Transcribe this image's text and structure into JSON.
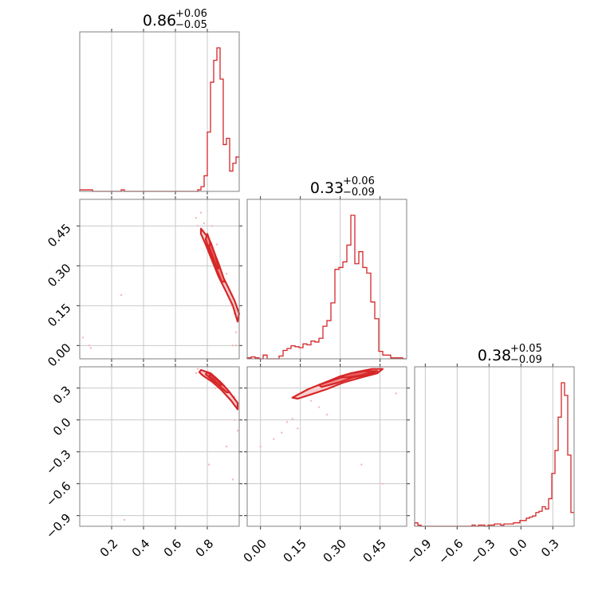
{
  "chart_data": {
    "type": "corner",
    "color": "#d62728",
    "grid": true,
    "params": [
      {
        "range": [
          0.0,
          1.0
        ],
        "ticks": [
          0.2,
          0.4,
          0.6,
          0.8
        ],
        "tick_labels": [
          "0.2",
          "0.4",
          "0.6",
          "0.8"
        ],
        "title": {
          "median": "0.86",
          "plus": "+0.06",
          "minus": "−0.05"
        },
        "hist_bins": [
          0.0,
          0.02,
          0.04,
          0.06,
          0.08,
          0.1,
          0.12,
          0.14,
          0.16,
          0.18,
          0.2,
          0.22,
          0.24,
          0.26,
          0.28,
          0.3,
          0.32,
          0.34,
          0.36,
          0.38,
          0.4,
          0.42,
          0.44,
          0.46,
          0.48,
          0.5,
          0.52,
          0.54,
          0.56,
          0.58,
          0.6,
          0.62,
          0.64,
          0.66,
          0.68,
          0.7,
          0.72,
          0.74,
          0.76,
          0.78,
          0.8,
          0.82,
          0.84,
          0.86,
          0.88,
          0.9,
          0.92,
          0.94,
          0.96,
          0.98,
          1.0
        ],
        "hist_values": [
          1,
          1,
          1,
          1,
          0,
          0,
          0,
          0,
          0,
          0,
          0,
          0,
          0,
          1,
          0,
          0,
          0,
          0,
          0,
          0,
          0,
          0,
          0,
          0,
          0,
          0,
          0,
          0,
          0,
          0,
          0,
          0,
          0,
          0,
          0,
          0,
          0,
          1,
          3,
          10,
          38,
          70,
          84,
          92,
          72,
          30,
          34,
          13,
          18,
          22
        ]
      },
      {
        "range": [
          -0.05,
          0.55
        ],
        "ticks": [
          0.0,
          0.15,
          0.3,
          0.45
        ],
        "tick_labels": [
          "0.00",
          "0.15",
          "0.30",
          "0.45"
        ],
        "title": {
          "median": "0.33",
          "plus": "+0.06",
          "minus": "−0.09"
        },
        "hist_bins": [
          -0.05,
          -0.035,
          -0.02,
          -0.005,
          0.01,
          0.025,
          0.04,
          0.055,
          0.07,
          0.085,
          0.1,
          0.115,
          0.13,
          0.145,
          0.16,
          0.175,
          0.19,
          0.205,
          0.22,
          0.235,
          0.25,
          0.265,
          0.28,
          0.295,
          0.31,
          0.325,
          0.34,
          0.355,
          0.37,
          0.385,
          0.4,
          0.415,
          0.43,
          0.445,
          0.46,
          0.475,
          0.49,
          0.505,
          0.52,
          0.535,
          0.55
        ],
        "hist_values": [
          1,
          2,
          1,
          0,
          4,
          0,
          0,
          0,
          3,
          9,
          11,
          14,
          13,
          12,
          16,
          15,
          19,
          18,
          22,
          35,
          41,
          60,
          96,
          98,
          104,
          122,
          154,
          102,
          115,
          98,
          92,
          61,
          43,
          8,
          4,
          4,
          1,
          1,
          1,
          0
        ]
      },
      {
        "range": [
          -1.0,
          0.5
        ],
        "ticks": [
          -0.9,
          -0.6,
          -0.3,
          0.0,
          0.3
        ],
        "tick_labels": [
          "−0.9",
          "−0.6",
          "−0.3",
          "0.0",
          "0.3"
        ],
        "title": {
          "median": "0.38",
          "plus": "+0.05",
          "minus": "−0.09"
        },
        "hist_bins": [
          -1.0,
          -0.97,
          -0.94,
          -0.91,
          -0.88,
          -0.85,
          -0.82,
          -0.79,
          -0.76,
          -0.73,
          -0.7,
          -0.67,
          -0.64,
          -0.61,
          -0.58,
          -0.55,
          -0.52,
          -0.49,
          -0.46,
          -0.43,
          -0.4,
          -0.37,
          -0.34,
          -0.31,
          -0.28,
          -0.25,
          -0.22,
          -0.19,
          -0.16,
          -0.13,
          -0.1,
          -0.07,
          -0.04,
          -0.01,
          0.02,
          0.05,
          0.08,
          0.11,
          0.14,
          0.17,
          0.2,
          0.23,
          0.26,
          0.29,
          0.32,
          0.35,
          0.38,
          0.41,
          0.44,
          0.47,
          0.5
        ],
        "hist_values": [
          3,
          1,
          0,
          0,
          0,
          0,
          0,
          0,
          0,
          0,
          0,
          0,
          0,
          0,
          0,
          0,
          0,
          0,
          1,
          0,
          1,
          1,
          0,
          1,
          1,
          2,
          2,
          1,
          2,
          2,
          2,
          3,
          3,
          5,
          5,
          7,
          8,
          9,
          12,
          13,
          17,
          15,
          24,
          46,
          66,
          95,
          125,
          114,
          62,
          12
        ]
      }
    ],
    "contours": [
      {
        "row": 1,
        "col": 0,
        "levels": [
          [
            [
              0.76,
              0.44
            ],
            [
              0.8,
              0.41
            ],
            [
              0.84,
              0.34
            ],
            [
              0.88,
              0.28
            ],
            [
              0.93,
              0.22
            ],
            [
              0.97,
              0.17
            ],
            [
              1.0,
              0.12
            ],
            [
              0.99,
              0.09
            ],
            [
              0.96,
              0.15
            ],
            [
              0.92,
              0.2
            ],
            [
              0.87,
              0.26
            ],
            [
              0.83,
              0.32
            ],
            [
              0.79,
              0.38
            ],
            [
              0.76,
              0.42
            ]
          ],
          [
            [
              0.8,
              0.42
            ],
            [
              0.83,
              0.37
            ],
            [
              0.87,
              0.31
            ],
            [
              0.91,
              0.24
            ],
            [
              0.89,
              0.24
            ],
            [
              0.85,
              0.3
            ],
            [
              0.81,
              0.36
            ],
            [
              0.79,
              0.4
            ]
          ],
          [
            [
              0.82,
              0.39
            ],
            [
              0.85,
              0.34
            ],
            [
              0.87,
              0.29
            ],
            [
              0.86,
              0.29
            ],
            [
              0.83,
              0.34
            ],
            [
              0.81,
              0.37
            ]
          ]
        ],
        "points": [
          [
            0.73,
            0.48
          ],
          [
            0.76,
            0.5
          ],
          [
            0.78,
            0.46
          ],
          [
            0.74,
            0.45
          ],
          [
            0.83,
            0.45
          ],
          [
            0.95,
            0.15
          ],
          [
            0.98,
            0.05
          ],
          [
            0.98,
            0.0
          ],
          [
            0.96,
            0.0
          ],
          [
            0.26,
            0.19
          ],
          [
            0.02,
            0.03
          ],
          [
            0.07,
            -0.01
          ],
          [
            0.06,
            0.0
          ],
          [
            0.97,
            0.12
          ],
          [
            0.92,
            0.27
          ],
          [
            0.86,
            0.38
          ]
        ]
      },
      {
        "row": 2,
        "col": 0,
        "levels": [
          [
            [
              0.76,
              0.47
            ],
            [
              0.82,
              0.44
            ],
            [
              0.88,
              0.36
            ],
            [
              0.94,
              0.26
            ],
            [
              0.99,
              0.16
            ],
            [
              0.99,
              0.1
            ],
            [
              0.95,
              0.18
            ],
            [
              0.89,
              0.28
            ],
            [
              0.83,
              0.36
            ],
            [
              0.77,
              0.42
            ],
            [
              0.75,
              0.45
            ]
          ],
          [
            [
              0.8,
              0.45
            ],
            [
              0.85,
              0.4
            ],
            [
              0.9,
              0.33
            ],
            [
              0.94,
              0.26
            ],
            [
              0.92,
              0.26
            ],
            [
              0.87,
              0.33
            ],
            [
              0.82,
              0.39
            ],
            [
              0.79,
              0.43
            ]
          ],
          [
            [
              0.82,
              0.43
            ],
            [
              0.86,
              0.38
            ],
            [
              0.89,
              0.33
            ],
            [
              0.87,
              0.33
            ],
            [
              0.84,
              0.38
            ],
            [
              0.81,
              0.41
            ]
          ]
        ],
        "points": [
          [
            0.74,
            0.48
          ],
          [
            0.73,
            0.44
          ],
          [
            0.97,
            0.0
          ],
          [
            0.99,
            -0.1
          ],
          [
            0.92,
            -0.25
          ],
          [
            0.81,
            -0.42
          ],
          [
            0.96,
            -0.56
          ],
          [
            0.28,
            -0.94
          ],
          [
            0.85,
            0.3
          ],
          [
            0.97,
            0.22
          ]
        ]
      },
      {
        "row": 2,
        "col": 1,
        "levels": [
          [
            [
              0.12,
              0.21
            ],
            [
              0.18,
              0.29
            ],
            [
              0.24,
              0.35
            ],
            [
              0.3,
              0.41
            ],
            [
              0.36,
              0.45
            ],
            [
              0.42,
              0.48
            ],
            [
              0.46,
              0.48
            ],
            [
              0.44,
              0.44
            ],
            [
              0.38,
              0.4
            ],
            [
              0.31,
              0.35
            ],
            [
              0.25,
              0.29
            ],
            [
              0.19,
              0.24
            ],
            [
              0.14,
              0.2
            ]
          ],
          [
            [
              0.22,
              0.33
            ],
            [
              0.28,
              0.38
            ],
            [
              0.34,
              0.43
            ],
            [
              0.4,
              0.46
            ],
            [
              0.44,
              0.46
            ],
            [
              0.41,
              0.43
            ],
            [
              0.35,
              0.4
            ],
            [
              0.29,
              0.35
            ],
            [
              0.23,
              0.31
            ]
          ],
          [
            [
              0.29,
              0.4
            ],
            [
              0.34,
              0.44
            ],
            [
              0.39,
              0.46
            ],
            [
              0.42,
              0.45
            ],
            [
              0.38,
              0.42
            ],
            [
              0.33,
              0.4
            ]
          ]
        ],
        "points": [
          [
            0.12,
            0.01
          ],
          [
            0.19,
            0.18
          ],
          [
            0.0,
            -0.25
          ],
          [
            0.05,
            -0.18
          ],
          [
            0.08,
            -0.12
          ],
          [
            0.14,
            -0.08
          ],
          [
            0.25,
            0.05
          ],
          [
            0.38,
            -0.42
          ],
          [
            0.46,
            -0.6
          ],
          [
            0.51,
            0.25
          ],
          [
            0.45,
            0.48
          ],
          [
            0.22,
            0.12
          ],
          [
            0.1,
            -0.02
          ]
        ]
      }
    ]
  }
}
